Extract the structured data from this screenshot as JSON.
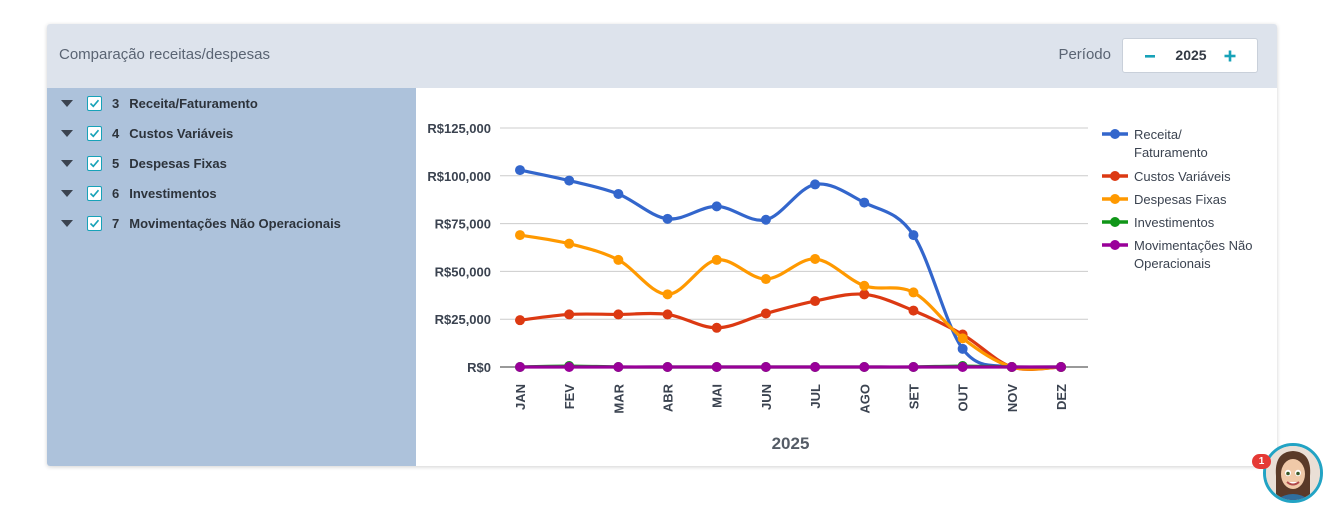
{
  "header": {
    "title": "Comparação receitas/despesas",
    "period_label": "Período",
    "period_value": "2025",
    "minus_icon": "minus-icon",
    "plus_icon": "plus-icon"
  },
  "sidebar": {
    "items": [
      {
        "num": "3",
        "label": "Receita/Faturamento",
        "checked": true
      },
      {
        "num": "4",
        "label": "Custos Variáveis",
        "checked": true
      },
      {
        "num": "5",
        "label": "Despesas Fixas",
        "checked": true
      },
      {
        "num": "6",
        "label": "Investimentos",
        "checked": true
      },
      {
        "num": "7",
        "label": "Movimentações Não Operacionais",
        "checked": true
      }
    ]
  },
  "chart_data": {
    "type": "line",
    "categories": [
      "JAN",
      "FEV",
      "MAR",
      "ABR",
      "MAI",
      "JUN",
      "JUL",
      "AGO",
      "SET",
      "OUT",
      "NOV",
      "DEZ"
    ],
    "xlabel": "2025",
    "ylabel": "",
    "ylim": [
      0,
      125000
    ],
    "yticks": [
      "R$0",
      "R$25,000",
      "R$50,000",
      "R$75,000",
      "R$100,000",
      "R$125,000"
    ],
    "grid": true,
    "legend_position": "right",
    "series": [
      {
        "name": "Receita/ Faturamento",
        "color": "#3366cc",
        "values": [
          103000,
          97500,
          90500,
          77500,
          84000,
          77000,
          95500,
          86000,
          69000,
          9500,
          0,
          0
        ]
      },
      {
        "name": "Custos Variáveis",
        "color": "#dc3912",
        "values": [
          24500,
          27500,
          27500,
          27500,
          20500,
          28000,
          34500,
          38000,
          29500,
          17000,
          0,
          0
        ]
      },
      {
        "name": "Despesas Fixas",
        "color": "#ff9900",
        "values": [
          69000,
          64500,
          56000,
          38000,
          56000,
          46000,
          56500,
          42500,
          39000,
          15000,
          0,
          0
        ]
      },
      {
        "name": "Investimentos",
        "color": "#109618",
        "values": [
          0,
          500,
          0,
          0,
          0,
          0,
          0,
          0,
          0,
          500,
          0,
          0
        ]
      },
      {
        "name": "Movimentações Não Operacionais",
        "color": "#990099",
        "values": [
          0,
          0,
          0,
          0,
          0,
          0,
          0,
          0,
          0,
          0,
          0,
          0
        ]
      }
    ]
  },
  "notifications": {
    "badge_count": "1",
    "avatar_icon": "assistant-avatar-icon"
  }
}
